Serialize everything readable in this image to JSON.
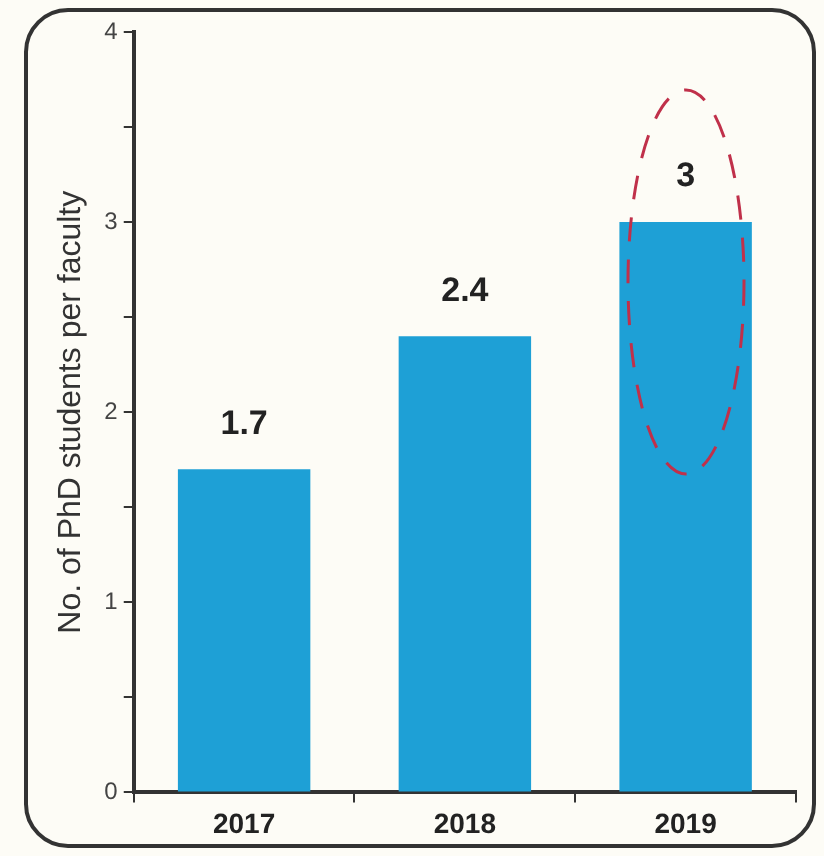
{
  "chart_data": {
    "type": "bar",
    "ylabel": "No. of PhD students per faculty",
    "categories": [
      "2017",
      "2018",
      "2019"
    ],
    "values": [
      1.7,
      2.4,
      3
    ],
    "color": "#1ea0d6",
    "ylim": [
      0,
      4
    ],
    "yticks": [
      0,
      {
        "value": 0.5,
        "label": null
      },
      1,
      {
        "value": 1.5,
        "label": null
      },
      2,
      {
        "value": 2.5,
        "label": null
      },
      3,
      {
        "value": 3.5,
        "label": null
      },
      4
    ],
    "grid": false,
    "legend": false,
    "data_labels": true
  }
}
